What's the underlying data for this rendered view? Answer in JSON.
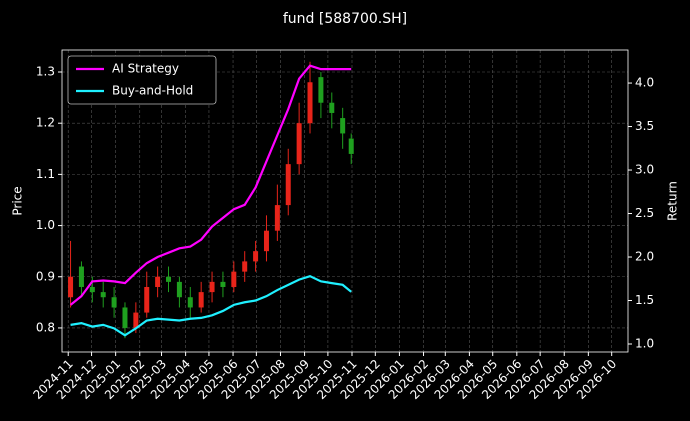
{
  "chart_data": {
    "type": "candlestick",
    "title": "fund [588700.SH]",
    "ylabel": "Price",
    "y2label": "Return",
    "x": [
      "2024-11-04",
      "2024-11-18",
      "2024-12-02",
      "2024-12-16",
      "2024-12-30",
      "2025-01-13",
      "2025-01-27",
      "2025-02-10",
      "2025-02-24",
      "2025-03-10",
      "2025-03-24",
      "2025-04-07",
      "2025-04-21",
      "2025-05-05",
      "2025-05-19",
      "2025-06-02",
      "2025-06-16",
      "2025-06-30",
      "2025-07-14",
      "2025-07-28",
      "2025-08-11",
      "2025-08-25",
      "2025-09-08",
      "2025-09-22",
      "2025-10-06",
      "2025-10-20",
      "2025-10-31"
    ],
    "open": [
      0.86,
      0.92,
      0.88,
      0.87,
      0.86,
      0.84,
      0.8,
      0.83,
      0.88,
      0.9,
      0.89,
      0.86,
      0.84,
      0.87,
      0.89,
      0.88,
      0.91,
      0.93,
      0.95,
      0.99,
      1.04,
      1.12,
      1.2,
      1.29,
      1.24,
      1.21,
      1.17
    ],
    "high": [
      0.97,
      0.93,
      0.9,
      0.89,
      0.88,
      0.85,
      0.85,
      0.91,
      0.92,
      0.92,
      0.9,
      0.88,
      0.89,
      0.91,
      0.91,
      0.93,
      0.95,
      0.97,
      1.02,
      1.08,
      1.15,
      1.24,
      1.32,
      1.3,
      1.26,
      1.23,
      1.18
    ],
    "low": [
      0.84,
      0.86,
      0.85,
      0.84,
      0.82,
      0.78,
      0.79,
      0.82,
      0.86,
      0.87,
      0.84,
      0.82,
      0.83,
      0.85,
      0.86,
      0.87,
      0.89,
      0.91,
      0.93,
      0.97,
      1.02,
      1.1,
      1.18,
      1.21,
      1.19,
      1.15,
      1.12
    ],
    "close": [
      0.9,
      0.88,
      0.87,
      0.86,
      0.84,
      0.8,
      0.83,
      0.88,
      0.9,
      0.89,
      0.86,
      0.84,
      0.87,
      0.89,
      0.88,
      0.91,
      0.93,
      0.95,
      0.99,
      1.04,
      1.12,
      1.2,
      1.28,
      1.24,
      1.22,
      1.18,
      1.14
    ],
    "up_color": "#e8241a",
    "down_color": "#1fa01f",
    "series": [
      {
        "name": "AI Strategy",
        "color": "#ff00ff",
        "axis": "y2",
        "values": [
          1.45,
          1.55,
          1.72,
          1.73,
          1.72,
          1.7,
          1.82,
          1.93,
          2.0,
          2.05,
          2.1,
          2.12,
          2.2,
          2.35,
          2.45,
          2.55,
          2.6,
          2.8,
          3.1,
          3.4,
          3.7,
          4.05,
          4.2,
          4.16,
          4.16,
          4.16,
          4.16
        ]
      },
      {
        "name": "Buy-and-Hold",
        "color": "#1ff0ff",
        "axis": "y2",
        "values": [
          1.22,
          1.24,
          1.2,
          1.22,
          1.18,
          1.1,
          1.18,
          1.27,
          1.29,
          1.28,
          1.27,
          1.29,
          1.3,
          1.33,
          1.38,
          1.45,
          1.48,
          1.5,
          1.55,
          1.62,
          1.68,
          1.74,
          1.78,
          1.72,
          1.7,
          1.68,
          1.6
        ]
      }
    ],
    "xlim": [
      "2024-10-24",
      "2026-10-22"
    ],
    "xticks": [
      "2024-11",
      "2024-12",
      "2025-01",
      "2025-02",
      "2025-03",
      "2025-04",
      "2025-05",
      "2025-06",
      "2025-07",
      "2025-08",
      "2025-09",
      "2025-10",
      "2025-11",
      "2025-12",
      "2026-01",
      "2026-02",
      "2026-03",
      "2026-04",
      "2026-05",
      "2026-06",
      "2026-07",
      "2026-08",
      "2026-09",
      "2026-10"
    ],
    "ylim": [
      0.753,
      1.343
    ],
    "yticks": [
      0.8,
      0.9,
      {
        "value": 1,
        "label": "1.0"
      },
      1.1,
      1.2,
      1.3
    ],
    "y2lim": [
      0.908,
      4.38
    ],
    "y2ticks": [
      {
        "value": 1,
        "label": "1.0"
      },
      1.5,
      {
        "value": 2,
        "label": "2.0"
      },
      2.5,
      {
        "value": 3,
        "label": "3.0"
      },
      3.5,
      {
        "value": 4,
        "label": "4.0"
      }
    ],
    "grid": true,
    "legend": "upper left"
  }
}
